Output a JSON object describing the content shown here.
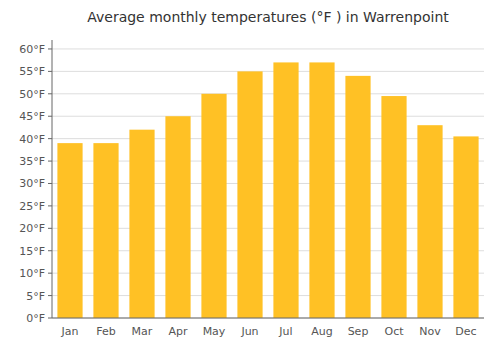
{
  "chart_data": {
    "type": "bar",
    "title": "Average monthly temperatures (°F ) in Warrenpoint",
    "categories": [
      "Jan",
      "Feb",
      "Mar",
      "Apr",
      "May",
      "Jun",
      "Jul",
      "Aug",
      "Sep",
      "Oct",
      "Nov",
      "Dec"
    ],
    "values": [
      39,
      39,
      42,
      45,
      50,
      55,
      57,
      57,
      54,
      49.5,
      43,
      40.5
    ],
    "color": "#FFC125",
    "ylim": [
      0,
      62
    ],
    "yticks": [
      {
        "value": 0,
        "label": "0°F"
      },
      {
        "value": 5,
        "label": "5°F"
      },
      {
        "value": 10,
        "label": "10°F"
      },
      {
        "value": 15,
        "label": "15°F"
      },
      {
        "value": 20,
        "label": "20°F"
      },
      {
        "value": 25,
        "label": "25°F"
      },
      {
        "value": 30,
        "label": "30°F"
      },
      {
        "value": 35,
        "label": "35°F"
      },
      {
        "value": 40,
        "label": "40°F"
      },
      {
        "value": 45,
        "label": "45°F"
      },
      {
        "value": 50,
        "label": "50°F"
      },
      {
        "value": 55,
        "label": "55°F"
      },
      {
        "value": 60,
        "label": "60°F"
      }
    ],
    "grid": true
  }
}
